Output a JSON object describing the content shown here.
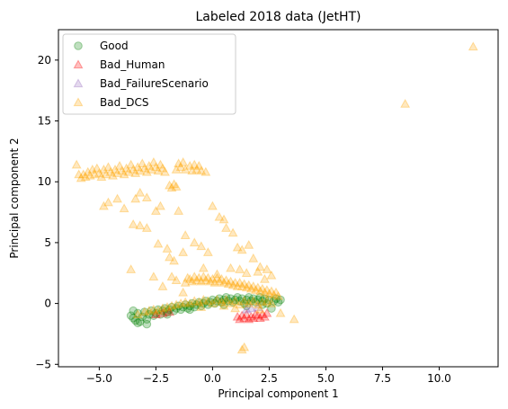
{
  "chart_data": {
    "type": "scatter",
    "title": "Labeled 2018 data (JetHT)",
    "xlabel": "Principal component 1",
    "ylabel": "Principal component 2",
    "xlim": [
      -6.8,
      12.6
    ],
    "ylim": [
      -5.2,
      22.5
    ],
    "xticks": [
      -5.0,
      -2.5,
      0.0,
      2.5,
      5.0,
      7.5,
      10.0
    ],
    "yticks": [
      -5,
      0,
      5,
      10,
      15,
      20
    ],
    "grid": false,
    "legend_position": "top-left",
    "series": [
      {
        "name": "Good",
        "marker": "circle",
        "color": "#008000",
        "points": [
          [
            -3.6,
            -1.0
          ],
          [
            -3.5,
            -1.2
          ],
          [
            -3.4,
            -1.4
          ],
          [
            -3.3,
            -0.8
          ],
          [
            -3.2,
            -1.5
          ],
          [
            -3.1,
            -1.1
          ],
          [
            -3.0,
            -0.7
          ],
          [
            -2.9,
            -1.3
          ],
          [
            -2.8,
            -0.9
          ],
          [
            -2.7,
            -0.6
          ],
          [
            -2.6,
            -1.0
          ],
          [
            -2.5,
            -0.8
          ],
          [
            -2.4,
            -0.5
          ],
          [
            -2.3,
            -0.9
          ],
          [
            -2.2,
            -0.6
          ],
          [
            -2.1,
            -0.4
          ],
          [
            -2.0,
            -0.7
          ],
          [
            -1.9,
            -0.5
          ],
          [
            -1.8,
            -0.3
          ],
          [
            -1.7,
            -0.6
          ],
          [
            -1.6,
            -0.4
          ],
          [
            -1.5,
            -0.2
          ],
          [
            -1.4,
            -0.5
          ],
          [
            -1.3,
            -0.3
          ],
          [
            -1.2,
            -0.1
          ],
          [
            -1.1,
            -0.4
          ],
          [
            -1.0,
            -0.2
          ],
          [
            -0.9,
            0.0
          ],
          [
            -0.8,
            -0.3
          ],
          [
            -0.7,
            -0.1
          ],
          [
            -0.6,
            0.1
          ],
          [
            -0.5,
            -0.2
          ],
          [
            -0.4,
            0.0
          ],
          [
            -0.3,
            0.2
          ],
          [
            -0.2,
            -0.1
          ],
          [
            -0.1,
            0.1
          ],
          [
            0.0,
            0.3
          ],
          [
            0.1,
            0.0
          ],
          [
            0.2,
            0.2
          ],
          [
            0.3,
            0.4
          ],
          [
            0.4,
            0.1
          ],
          [
            0.5,
            0.3
          ],
          [
            0.6,
            0.5
          ],
          [
            0.7,
            0.2
          ],
          [
            0.8,
            0.4
          ],
          [
            0.9,
            0.1
          ],
          [
            1.0,
            0.3
          ],
          [
            1.1,
            0.5
          ],
          [
            1.2,
            0.2
          ],
          [
            1.3,
            0.4
          ],
          [
            1.4,
            0.0
          ],
          [
            1.5,
            0.3
          ],
          [
            1.6,
            0.5
          ],
          [
            1.7,
            0.2
          ],
          [
            1.8,
            0.4
          ],
          [
            1.9,
            0.1
          ],
          [
            2.0,
            0.3
          ],
          [
            2.1,
            0.5
          ],
          [
            2.2,
            0.2
          ],
          [
            2.3,
            0.4
          ],
          [
            2.4,
            0.0
          ],
          [
            2.5,
            0.3
          ],
          [
            2.6,
            -0.4
          ],
          [
            2.7,
            0.2
          ],
          [
            2.8,
            0.4
          ],
          [
            2.9,
            0.1
          ],
          [
            3.0,
            0.3
          ],
          [
            -3.3,
            -1.6
          ],
          [
            -2.9,
            -1.7
          ],
          [
            -3.5,
            -0.6
          ],
          [
            -2.0,
            -0.9
          ],
          [
            -1.0,
            -0.5
          ],
          [
            0.5,
            -0.1
          ],
          [
            1.5,
            -0.2
          ],
          [
            2.2,
            -0.1
          ]
        ]
      },
      {
        "name": "Bad_Human",
        "marker": "triangle",
        "color": "#ff0000",
        "points": [
          [
            1.1,
            -1.1
          ],
          [
            1.2,
            -1.3
          ],
          [
            1.3,
            -1.0
          ],
          [
            1.4,
            -1.2
          ],
          [
            1.5,
            -0.9
          ],
          [
            1.6,
            -1.3
          ],
          [
            1.7,
            -1.1
          ],
          [
            1.8,
            -1.2
          ],
          [
            1.9,
            -0.9
          ],
          [
            2.0,
            -1.0
          ],
          [
            2.1,
            -1.2
          ],
          [
            2.2,
            -0.9
          ],
          [
            2.3,
            -1.1
          ],
          [
            2.4,
            -0.8
          ],
          [
            -2.5,
            -0.9
          ],
          [
            -2.2,
            -0.8
          ],
          [
            -1.9,
            -0.7
          ]
        ]
      },
      {
        "name": "Bad_FailureScenario",
        "marker": "triangle",
        "color": "#9467bd",
        "points": [
          [
            1.5,
            -0.5
          ],
          [
            1.7,
            -0.4
          ],
          [
            2.0,
            -0.3
          ]
        ]
      },
      {
        "name": "Bad_DCS",
        "marker": "triangle",
        "color": "#ffa500",
        "points": [
          [
            -6.0,
            11.4
          ],
          [
            -5.9,
            10.6
          ],
          [
            -5.8,
            10.3
          ],
          [
            -5.7,
            10.6
          ],
          [
            -5.6,
            10.4
          ],
          [
            -5.5,
            10.8
          ],
          [
            -5.4,
            10.5
          ],
          [
            -5.3,
            11.0
          ],
          [
            -5.2,
            10.6
          ],
          [
            -5.1,
            11.1
          ],
          [
            -5.0,
            10.7
          ],
          [
            -4.9,
            10.4
          ],
          [
            -4.8,
            11.0
          ],
          [
            -4.7,
            10.6
          ],
          [
            -4.6,
            11.2
          ],
          [
            -4.5,
            10.8
          ],
          [
            -4.4,
            10.5
          ],
          [
            -4.3,
            11.0
          ],
          [
            -4.2,
            10.7
          ],
          [
            -4.1,
            11.3
          ],
          [
            -4.0,
            10.9
          ],
          [
            -3.9,
            10.6
          ],
          [
            -3.8,
            11.1
          ],
          [
            -3.7,
            10.8
          ],
          [
            -3.6,
            11.4
          ],
          [
            -3.5,
            11.0
          ],
          [
            -3.4,
            10.7
          ],
          [
            -3.3,
            11.2
          ],
          [
            -3.2,
            10.9
          ],
          [
            -3.1,
            11.5
          ],
          [
            -3.0,
            11.1
          ],
          [
            -2.9,
            10.8
          ],
          [
            -2.8,
            11.3
          ],
          [
            -2.7,
            11.0
          ],
          [
            -2.6,
            11.6
          ],
          [
            -2.5,
            11.2
          ],
          [
            -2.4,
            10.9
          ],
          [
            -2.3,
            11.4
          ],
          [
            -2.2,
            11.1
          ],
          [
            -2.1,
            10.8
          ],
          [
            -1.6,
            11.0
          ],
          [
            -1.5,
            11.5
          ],
          [
            -1.4,
            11.2
          ],
          [
            -1.3,
            11.6
          ],
          [
            -1.2,
            11.0
          ],
          [
            -1.0,
            11.3
          ],
          [
            -0.9,
            10.9
          ],
          [
            -0.8,
            11.4
          ],
          [
            -0.7,
            11.0
          ],
          [
            -0.6,
            11.3
          ],
          [
            -0.5,
            10.9
          ],
          [
            -0.3,
            10.8
          ],
          [
            -1.9,
            9.7
          ],
          [
            -1.8,
            9.5
          ],
          [
            -1.7,
            9.8
          ],
          [
            -1.6,
            9.6
          ],
          [
            -4.8,
            8.0
          ],
          [
            -4.6,
            8.3
          ],
          [
            -4.2,
            8.6
          ],
          [
            -3.9,
            7.8
          ],
          [
            -3.4,
            8.6
          ],
          [
            -3.2,
            9.1
          ],
          [
            -2.9,
            8.7
          ],
          [
            -2.5,
            7.6
          ],
          [
            -2.3,
            8.0
          ],
          [
            -3.5,
            6.5
          ],
          [
            -3.2,
            6.4
          ],
          [
            -2.9,
            6.2
          ],
          [
            -3.6,
            2.8
          ],
          [
            -1.5,
            7.6
          ],
          [
            -1.2,
            5.6
          ],
          [
            -0.8,
            5.0
          ],
          [
            -0.5,
            4.7
          ],
          [
            0.0,
            8.0
          ],
          [
            0.3,
            7.1
          ],
          [
            0.5,
            6.9
          ],
          [
            0.6,
            6.2
          ],
          [
            0.9,
            5.8
          ],
          [
            1.1,
            4.6
          ],
          [
            1.3,
            4.4
          ],
          [
            1.6,
            4.8
          ],
          [
            1.8,
            3.7
          ],
          [
            2.1,
            3.0
          ],
          [
            2.4,
            2.8
          ],
          [
            -2.4,
            4.9
          ],
          [
            -2.0,
            4.5
          ],
          [
            -1.9,
            3.8
          ],
          [
            -1.7,
            3.5
          ],
          [
            -1.3,
            4.2
          ],
          [
            -0.2,
            4.2
          ],
          [
            -2.6,
            2.2
          ],
          [
            -2.2,
            1.4
          ],
          [
            -1.8,
            2.2
          ],
          [
            -0.4,
            2.9
          ],
          [
            0.2,
            2.4
          ],
          [
            0.8,
            2.9
          ],
          [
            -1.6,
            1.9
          ],
          [
            -1.3,
            0.9
          ],
          [
            -1.2,
            1.7
          ],
          [
            -1.1,
            2.1
          ],
          [
            -1.0,
            2.0
          ],
          [
            -0.9,
            1.8
          ],
          [
            -0.8,
            2.2
          ],
          [
            -0.7,
            1.9
          ],
          [
            -0.6,
            2.1
          ],
          [
            -0.5,
            1.8
          ],
          [
            -0.4,
            2.2
          ],
          [
            -0.3,
            1.9
          ],
          [
            -0.2,
            2.1
          ],
          [
            -0.1,
            1.8
          ],
          [
            0.0,
            2.0
          ],
          [
            0.1,
            1.7
          ],
          [
            0.2,
            2.1
          ],
          [
            0.3,
            1.8
          ],
          [
            0.4,
            2.0
          ],
          [
            0.5,
            1.7
          ],
          [
            0.6,
            1.9
          ],
          [
            0.7,
            1.6
          ],
          [
            0.8,
            1.8
          ],
          [
            0.9,
            1.5
          ],
          [
            1.0,
            1.7
          ],
          [
            1.1,
            1.4
          ],
          [
            1.2,
            1.7
          ],
          [
            1.3,
            1.4
          ],
          [
            1.4,
            1.6
          ],
          [
            1.5,
            1.3
          ],
          [
            1.6,
            1.5
          ],
          [
            1.7,
            1.2
          ],
          [
            1.8,
            1.4
          ],
          [
            1.9,
            1.1
          ],
          [
            2.0,
            1.3
          ],
          [
            2.1,
            1.0
          ],
          [
            2.2,
            1.2
          ],
          [
            2.3,
            0.9
          ],
          [
            2.4,
            1.1
          ],
          [
            2.5,
            0.8
          ],
          [
            2.6,
            1.0
          ],
          [
            2.7,
            0.7
          ],
          [
            2.8,
            0.9
          ],
          [
            2.9,
            0.6
          ],
          [
            1.2,
            2.8
          ],
          [
            1.5,
            2.5
          ],
          [
            2.0,
            2.6
          ],
          [
            2.3,
            2.0
          ],
          [
            2.6,
            2.3
          ],
          [
            -3.3,
            -0.9
          ],
          [
            -3.0,
            -0.7
          ],
          [
            -2.8,
            -0.6
          ],
          [
            -2.6,
            -0.5
          ],
          [
            -2.4,
            -0.6
          ],
          [
            -2.2,
            -0.4
          ],
          [
            -2.0,
            -0.3
          ],
          [
            -1.8,
            -0.2
          ],
          [
            -1.6,
            -0.1
          ],
          [
            -1.4,
            0.0
          ],
          [
            -1.2,
            0.1
          ],
          [
            -1.0,
            0.0
          ],
          [
            -0.8,
            0.2
          ],
          [
            -0.6,
            0.1
          ],
          [
            -0.4,
            0.3
          ],
          [
            -0.2,
            0.2
          ],
          [
            0.0,
            0.0
          ],
          [
            0.2,
            0.3
          ],
          [
            0.4,
            0.1
          ],
          [
            0.6,
            0.3
          ],
          [
            0.8,
            0.0
          ],
          [
            1.0,
            0.2
          ],
          [
            1.2,
            -0.1
          ],
          [
            1.4,
            0.2
          ],
          [
            1.6,
            0.0
          ],
          [
            1.8,
            0.2
          ],
          [
            2.0,
            -0.1
          ],
          [
            2.2,
            0.1
          ],
          [
            2.4,
            0.2
          ],
          [
            2.6,
            0.0
          ],
          [
            -0.5,
            -0.3
          ],
          [
            0.5,
            -0.2
          ],
          [
            1.0,
            -0.4
          ],
          [
            2.1,
            -0.5
          ],
          [
            3.6,
            -1.3
          ],
          [
            3.0,
            -0.8
          ],
          [
            1.4,
            -3.6
          ],
          [
            1.3,
            -3.8
          ],
          [
            8.5,
            16.4
          ],
          [
            11.5,
            21.1
          ]
        ]
      }
    ]
  }
}
